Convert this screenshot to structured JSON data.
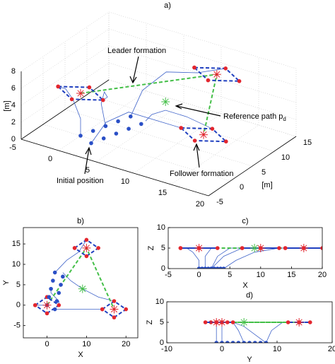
{
  "chart_data": [
    {
      "type": "line3d",
      "title": "a)",
      "ylabel": "[m]",
      "zlabel": "[m]",
      "xlim": [
        -5,
        20
      ],
      "xticks": [
        -5,
        0,
        5,
        10,
        15,
        20
      ],
      "ylim": [
        -5,
        15
      ],
      "yticks": [
        -5,
        0,
        5,
        10,
        15
      ],
      "zlim": [
        0,
        8
      ],
      "zticks": [
        0,
        2,
        4,
        6,
        8
      ],
      "grid": true,
      "annotations": [
        {
          "text": "Leader formation"
        },
        {
          "text": "Reference path p",
          "subscript": "d"
        },
        {
          "text": "Follower formation"
        },
        {
          "text": "Initial position"
        }
      ],
      "series": [
        {
          "color": "#3f63c9",
          "line": "solid",
          "marker": "none",
          "x": [
            0,
            0,
            -1,
            -2,
            -3
          ],
          "y": [
            0,
            0,
            0,
            0,
            0
          ],
          "z": [
            0,
            2,
            4,
            5,
            5
          ]
        },
        {
          "color": "#3f63c9",
          "line": "solid",
          "marker": "none",
          "x": [
            2,
            3,
            5,
            8,
            10
          ],
          "y": [
            8,
            9,
            11,
            13,
            16
          ],
          "z": [
            0,
            3,
            5,
            5,
            5
          ]
        },
        {
          "color": "#3f63c9",
          "line": "solid",
          "marker": "none",
          "x": [
            4,
            6,
            9,
            13,
            17
          ],
          "y": [
            8,
            6,
            4,
            2,
            1
          ],
          "z": [
            0,
            2,
            4,
            5,
            5
          ]
        },
        {
          "color": "#3f63c9",
          "line": "solid",
          "marker": "none",
          "x": [
            2,
            4,
            7,
            11,
            14
          ],
          "y": [
            -1,
            -1,
            -1,
            -1,
            -1
          ],
          "z": [
            0,
            3,
            5,
            5,
            5
          ]
        },
        {
          "color": "#3f63c9",
          "line": "solid",
          "marker": "none",
          "x": [
            1,
            1,
            2,
            3,
            3
          ],
          "y": [
            4,
            3,
            2,
            1,
            0
          ],
          "z": [
            0,
            3,
            5,
            5,
            5
          ]
        },
        {
          "color": "#44bf48",
          "line": "dashed",
          "marker": "none",
          "x": [
            0,
            10,
            17
          ],
          "y": [
            0,
            14,
            -1
          ],
          "z": [
            5,
            5,
            5
          ]
        },
        {
          "color": "#1f3fbf",
          "line": "dashed",
          "marker": "circle",
          "marker_color": "#e3262e",
          "x": [
            -3,
            0,
            3,
            0,
            -3
          ],
          "y": [
            0,
            2,
            0,
            -2,
            0
          ],
          "z": [
            5,
            5,
            5,
            5,
            5
          ]
        },
        {
          "color": "#1f3fbf",
          "line": "dashed",
          "marker": "circle",
          "marker_color": "#e3262e",
          "x": [
            7,
            10,
            13,
            10,
            7
          ],
          "y": [
            14,
            16,
            14,
            12,
            14
          ],
          "z": [
            5,
            5,
            5,
            5,
            5
          ]
        },
        {
          "color": "#1f3fbf",
          "line": "dashed",
          "marker": "circle",
          "marker_color": "#e3262e",
          "x": [
            14,
            17,
            20,
            17,
            14
          ],
          "y": [
            -1,
            1,
            -1,
            -3,
            -1
          ],
          "z": [
            5,
            5,
            5,
            5,
            5
          ]
        },
        {
          "color": "#2a4fc6",
          "line": "none",
          "marker": "dot",
          "marker_color": "#2a4fc6",
          "x": [
            0,
            0.5,
            1,
            1.5,
            2,
            2,
            2.5,
            3,
            3.5,
            4
          ],
          "y": [
            0,
            2,
            4,
            6,
            8,
            -1,
            1,
            3,
            5,
            7
          ],
          "z": [
            0,
            0,
            0,
            0,
            0,
            0,
            0,
            0,
            0,
            0
          ]
        },
        {
          "color": "#e3262e",
          "line": "none",
          "marker": "star",
          "marker_color": "#e3262e",
          "x": [
            0,
            10,
            17
          ],
          "y": [
            0,
            14,
            -1
          ],
          "z": [
            5,
            5,
            5
          ]
        },
        {
          "color": "#44bf48",
          "line": "none",
          "marker": "star",
          "marker_color": "#44bf48",
          "x": [
            9
          ],
          "y": [
            4
          ],
          "z": [
            5
          ]
        }
      ]
    },
    {
      "type": "projection",
      "title": "b)",
      "xlabel": "X",
      "ylabel": "Y",
      "xlim": [
        -6,
        23
      ],
      "xticks": [
        0,
        10,
        20
      ],
      "ylim": [
        -8,
        19
      ],
      "yticks": [
        -5,
        0,
        5,
        10,
        15
      ]
    },
    {
      "type": "projection",
      "title": "c)",
      "xlabel": "X",
      "ylabel": "Z",
      "xlim": [
        -5,
        20
      ],
      "xticks": [
        -5,
        0,
        5,
        10,
        15,
        20
      ],
      "ylim": [
        0,
        10
      ],
      "yticks": [
        0,
        5,
        10
      ]
    },
    {
      "type": "projection",
      "title": "d)",
      "xlabel": "Y",
      "ylabel": "Z",
      "xlim": [
        -10,
        20
      ],
      "xticks": [
        -10,
        0,
        10,
        20
      ],
      "ylim": [
        0,
        10
      ],
      "yticks": [
        0,
        5,
        10
      ]
    }
  ]
}
